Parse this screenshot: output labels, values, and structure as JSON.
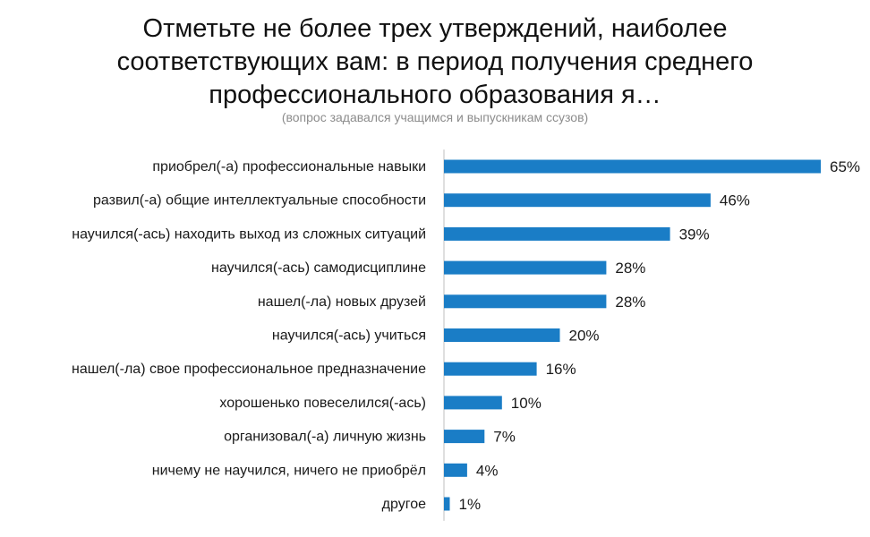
{
  "chart_data": {
    "type": "bar",
    "orientation": "horizontal",
    "title": "Отметьте не более трех утверждений, наиболее соответствующих вам: в период получения среднего профессионального образования я…",
    "title_lines": [
      "Отметьте не более трех утверждений, наиболее",
      "соответствующих вам: в период получения среднего",
      "профессионального образования я…"
    ],
    "subtitle": "(вопрос задавался учащимся и выпускникам ссузов)",
    "categories": [
      "приобрел(-а) профессиональные навыки",
      "развил(-а) общие интеллектуальные способности",
      "научился(-ась) находить выход из сложных ситуаций",
      "научился(-ась) самодисциплине",
      "нашел(-ла) новых друзей",
      "научился(-ась) учиться",
      "нашел(-ла) свое профессиональное предназначение",
      "хорошенько повеселился(-ась)",
      "организовал(-а) личную жизнь",
      "ничему не научился, ничего не приобрёл",
      "другое"
    ],
    "values": [
      65,
      46,
      39,
      28,
      28,
      20,
      16,
      10,
      7,
      4,
      1
    ],
    "value_labels": [
      "65%",
      "46%",
      "39%",
      "28%",
      "28%",
      "20%",
      "16%",
      "10%",
      "7%",
      "4%",
      "1%"
    ],
    "unit": "%",
    "xlim": [
      0,
      65
    ],
    "grid": false,
    "legend": "none",
    "colors": {
      "bar": "#1a7dc6",
      "axis": "#bfbfbf",
      "subtitle": "#8c8c8c",
      "text": "#1a1a1a"
    }
  }
}
